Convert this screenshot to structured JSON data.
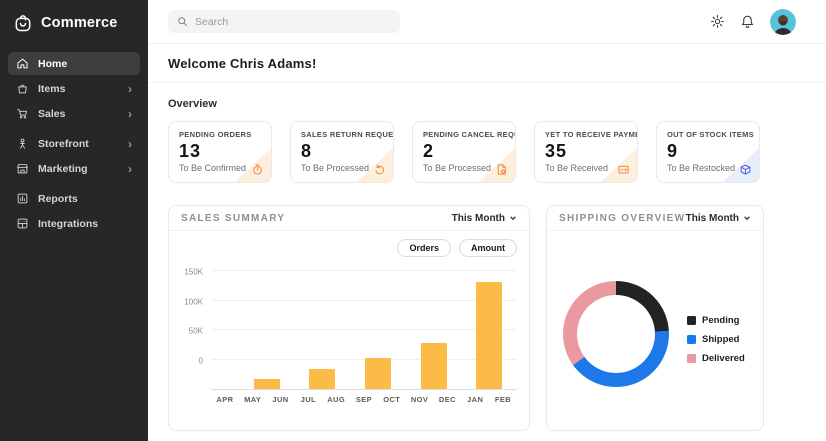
{
  "app": {
    "name": "Commerce"
  },
  "sidebar": {
    "items": [
      {
        "label": "Home",
        "icon": "home-icon",
        "active": true,
        "chevron": false,
        "gap_before": false
      },
      {
        "label": "Items",
        "icon": "basket-icon",
        "active": false,
        "chevron": true,
        "gap_before": false
      },
      {
        "label": "Sales",
        "icon": "cart-icon",
        "active": false,
        "chevron": true,
        "gap_before": false
      },
      {
        "label": "Storefront",
        "icon": "storefront-icon",
        "active": false,
        "chevron": true,
        "gap_before": true
      },
      {
        "label": "Marketing",
        "icon": "megaphone-store-icon",
        "active": false,
        "chevron": true,
        "gap_before": false
      },
      {
        "label": "Reports",
        "icon": "reports-icon",
        "active": false,
        "chevron": false,
        "gap_before": true
      },
      {
        "label": "Integrations",
        "icon": "integrations-icon",
        "active": false,
        "chevron": false,
        "gap_before": false
      }
    ]
  },
  "topbar": {
    "search_placeholder": "Search",
    "icons": [
      "settings-icon",
      "notifications-icon",
      "avatar"
    ]
  },
  "main": {
    "welcome": "Welcome Chris Adams!",
    "overview_label": "Overview",
    "stat_cards": [
      {
        "title": "PENDING ORDERS",
        "value": "13",
        "subtitle": "To Be Confirmed",
        "icon": "timer-icon",
        "accent": "#EE8338",
        "corner": "#fdeede"
      },
      {
        "title": "SALES RETURN REQUESTS",
        "value": "8",
        "subtitle": "To Be Processed",
        "icon": "return-arrow-icon",
        "accent": "#EE8338",
        "corner": "#fdeede"
      },
      {
        "title": "PENDING CANCEL REQUESTS",
        "value": "2",
        "subtitle": "To Be Processed",
        "icon": "cancel-doc-icon",
        "accent": "#EE8338",
        "corner": "#fdeede"
      },
      {
        "title": "YET TO RECEIVE PAYMENTS",
        "value": "35",
        "subtitle": "To Be Received",
        "icon": "payment-card-icon",
        "accent": "#EE8338",
        "corner": "#fdeede"
      },
      {
        "title": "OUT OF STOCK ITEMS",
        "value": "9",
        "subtitle": "To Be Restocked",
        "icon": "stock-box-icon",
        "accent": "#4156D8",
        "corner": "#e8edfb"
      }
    ],
    "sales_summary": {
      "title": "SALES SUMMARY",
      "period": "This Month",
      "toggles": [
        "Orders",
        "Amount"
      ]
    },
    "shipping_overview": {
      "title": "SHIPPING OVERVIEW",
      "period": "This Month"
    }
  },
  "chart_data": [
    {
      "type": "bar",
      "title": "SALES SUMMARY",
      "period": "This Month",
      "categories": [
        "APR",
        "MAY",
        "JUN",
        "JUL",
        "AUG",
        "SEP",
        "OCT",
        "NOV",
        "DEC",
        "JAN",
        "FEB"
      ],
      "bars": [
        {
          "between": [
            "MAY",
            "JUN"
          ],
          "value_k": -33
        },
        {
          "between": [
            "JUL",
            "AUG"
          ],
          "value_k": -16
        },
        {
          "between": [
            "SEP",
            "OCT"
          ],
          "value_k": 2
        },
        {
          "between": [
            "NOV",
            "DEC"
          ],
          "value_k": 28
        },
        {
          "between": [
            "JAN",
            "FEB"
          ],
          "value_k": 131
        }
      ],
      "ticks_k": [
        150,
        100,
        50,
        0
      ],
      "tick_labels": [
        "150K",
        "100K",
        "50K",
        "0"
      ],
      "ylim_k": [
        -50,
        150
      ],
      "bar_color": "#FCBA47",
      "grid": true,
      "legend_position": "none"
    },
    {
      "type": "pie",
      "donut": true,
      "title": "SHIPPING OVERVIEW",
      "period": "This Month",
      "segments": [
        {
          "label": "Pending",
          "percent": 24,
          "color": "#232323"
        },
        {
          "label": "Shipped",
          "percent": 41,
          "color": "#1D79EA"
        },
        {
          "label": "Delivered",
          "percent": 35,
          "color": "#E9999F"
        }
      ],
      "legend_position": "right"
    }
  ]
}
